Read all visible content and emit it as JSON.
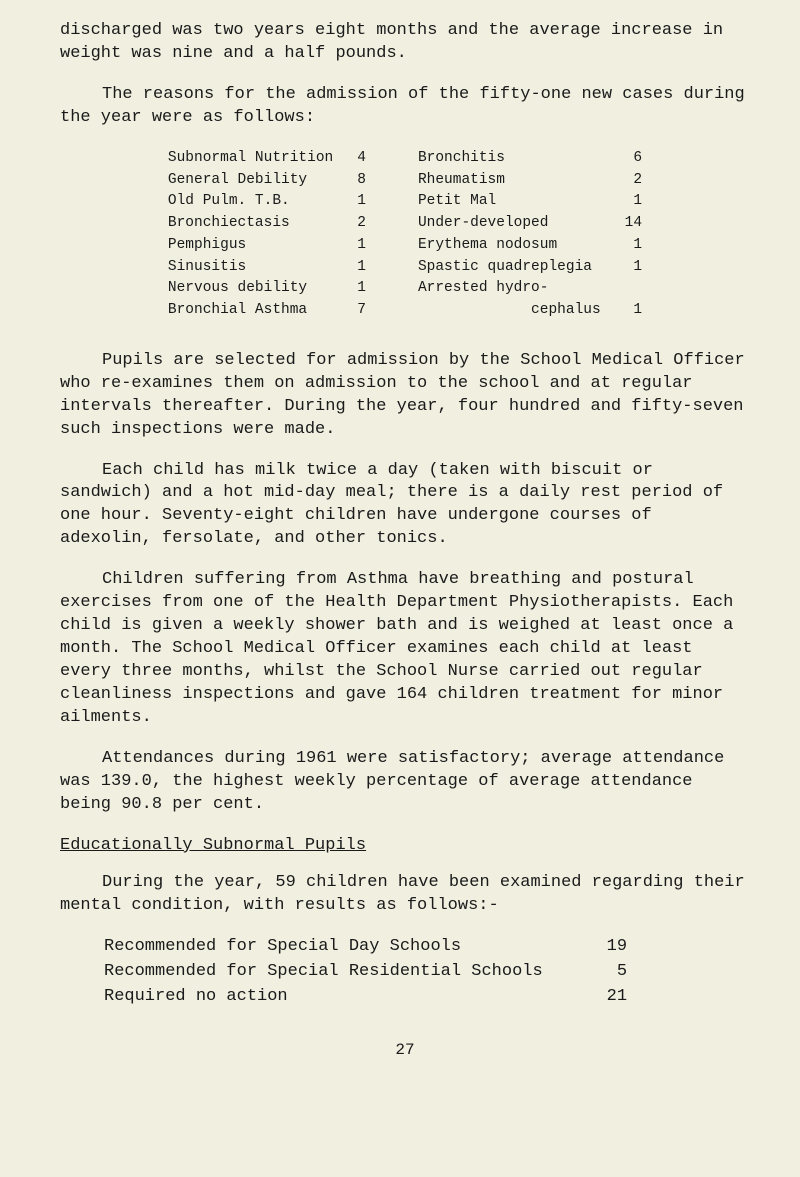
{
  "para1": "discharged was two years eight months and the average increase in weight was nine and a half pounds.",
  "para2": "The reasons for the admission of the fifty-one new cases during the year were as follows:",
  "admissions_left": [
    {
      "label": "Subnormal Nutrition",
      "value": "4"
    },
    {
      "label": "General Debility",
      "value": "8"
    },
    {
      "label": "Old Pulm. T.B.",
      "value": "1"
    },
    {
      "label": "Bronchiectasis",
      "value": "2"
    },
    {
      "label": "Pemphigus",
      "value": "1"
    },
    {
      "label": "Sinusitis",
      "value": "1"
    },
    {
      "label": "Nervous debility",
      "value": "1"
    },
    {
      "label": "Bronchial Asthma",
      "value": "7"
    }
  ],
  "admissions_right": [
    {
      "label": "Bronchitis",
      "value": "6"
    },
    {
      "label": "Rheumatism",
      "value": "2"
    },
    {
      "label": "Petit Mal",
      "value": "1"
    },
    {
      "label": "Under-developed",
      "value": "14"
    },
    {
      "label": "Erythema nodosum",
      "value": "1"
    },
    {
      "label": "Spastic quadreplegia",
      "value": "1"
    },
    {
      "label": "Arrested hydro-",
      "value": ""
    },
    {
      "label": "             cephalus",
      "value": "1"
    }
  ],
  "para3": "Pupils are selected for admission by the School Medical Officer who re-examines them on admission to the school and at regular intervals thereafter.   During the year, four hundred and fifty-seven such inspections were made.",
  "para4": "Each child has milk twice a day (taken with biscuit or sandwich) and a hot mid-day meal; there is a daily rest period of one hour.  Seventy-eight children have undergone courses of adexolin, fersolate, and other tonics.",
  "para5": "Children suffering from Asthma have breathing and postural exercises from one of the Health Department Physiotherapists. Each child is given a weekly shower bath and is weighed at least once a month.  The School Medical Officer examines each child at least every three months, whilst the School Nurse carried out regular cleanliness inspections and gave 164 children treatment for minor ailments.",
  "para6": "Attendances during 1961 were satisfactory; average attendance was 139.0, the highest weekly percentage of average attendance being 90.8 per cent.",
  "heading1": "Educationally Subnormal Pupils",
  "para7": "During the year, 59 children have been examined regarding their mental condition, with results as follows:-",
  "results": [
    {
      "label": "Recommended for Special Day Schools",
      "value": "19"
    },
    {
      "label": "Recommended for Special Residential Schools",
      "value": "5"
    },
    {
      "label": "Required no action",
      "value": "21"
    }
  ],
  "page_number": "27"
}
